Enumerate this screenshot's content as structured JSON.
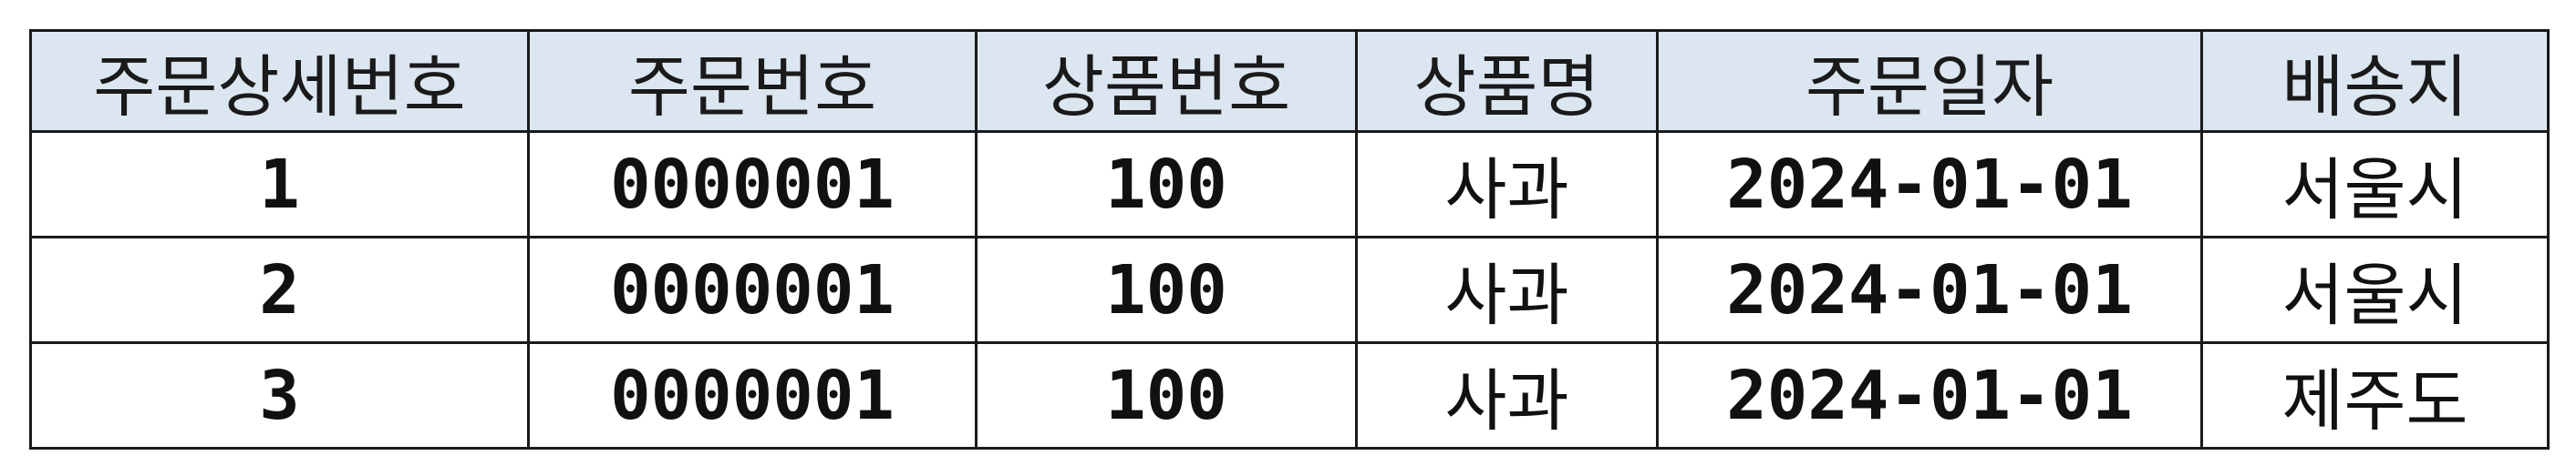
{
  "table": {
    "headers": [
      "주문상세번호",
      "주문번호",
      "상품번호",
      "상품명",
      "주문일자",
      "배송지"
    ],
    "rows": [
      [
        "1",
        "0000001",
        "100",
        "사과",
        "2024-01-01",
        "서울시"
      ],
      [
        "2",
        "0000001",
        "100",
        "사과",
        "2024-01-01",
        "서울시"
      ],
      [
        "3",
        "0000001",
        "100",
        "사과",
        "2024-01-01",
        "제주도"
      ]
    ]
  },
  "colors": {
    "header_background": "#dce6f1",
    "border": "#1a1a1a",
    "text": "#111111"
  }
}
